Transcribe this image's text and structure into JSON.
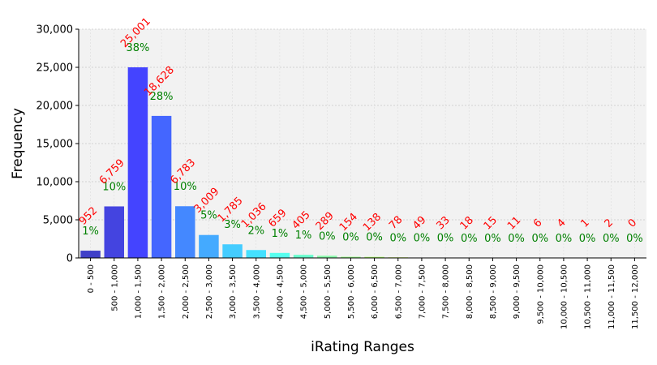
{
  "chart_data": {
    "type": "bar",
    "title": "",
    "xlabel": "iRating Ranges",
    "ylabel": "Frequency",
    "ylim": [
      0,
      30000
    ],
    "yticks": [
      "0",
      "5,000",
      "10,000",
      "15,000",
      "20,000",
      "25,000",
      "30,000"
    ],
    "ytick_values": [
      0,
      5000,
      10000,
      15000,
      20000,
      25000,
      30000
    ],
    "grid": true,
    "categories": [
      "0 - 500",
      "500 - 1,000",
      "1,000 - 1,500",
      "1,500 - 2,000",
      "2,000 - 2,500",
      "2,500 - 3,000",
      "3,000 - 3,500",
      "3,500 - 4,000",
      "4,000 - 4,500",
      "4,500 - 5,000",
      "5,000 - 5,500",
      "5,500 - 6,000",
      "6,000 - 6,500",
      "6,500 - 7,000",
      "7,000 - 7,500",
      "7,500 - 8,000",
      "8,000 - 8,500",
      "8,500 - 9,000",
      "9,000 - 9,500",
      "9,500 - 10,000",
      "10,000 - 10,500",
      "10,500 - 11,000",
      "11,000 - 11,500",
      "11,500 - 12,000"
    ],
    "values": [
      952,
      6759,
      25001,
      18628,
      6783,
      3009,
      1785,
      1036,
      659,
      405,
      289,
      154,
      138,
      78,
      49,
      33,
      18,
      15,
      11,
      6,
      4,
      1,
      2,
      0
    ],
    "value_labels": [
      "952",
      "6,759",
      "25,001",
      "18,628",
      "6,783",
      "3,009",
      "1,785",
      "1,036",
      "659",
      "405",
      "289",
      "154",
      "138",
      "78",
      "49",
      "33",
      "18",
      "15",
      "11",
      "6",
      "4",
      "1",
      "2",
      "0"
    ],
    "percent_labels": [
      "1%",
      "10%",
      "38%",
      "28%",
      "10%",
      "5%",
      "3%",
      "2%",
      "1%",
      "1%",
      "0%",
      "0%",
      "0%",
      "0%",
      "0%",
      "0%",
      "0%",
      "0%",
      "0%",
      "0%",
      "0%",
      "0%",
      "0%",
      "0%"
    ],
    "bar_colors": [
      "#4040c8",
      "#4444e0",
      "#4444ff",
      "#4466ff",
      "#4488ff",
      "#44aaff",
      "#44ccff",
      "#44e0ff",
      "#55ffee",
      "#66ffcc",
      "#88ffaa",
      "#99ff88",
      "#aaff66",
      "#ccff44",
      "#e6ff33",
      "#ffff22",
      "#ffdd22",
      "#ffbb22",
      "#ff9922",
      "#ff7722",
      "#ff5522",
      "#ff3322",
      "#ff2222",
      "#ee1111"
    ],
    "count_label_color": "#ff0000",
    "percent_label_color": "#008000",
    "plot_background": "#f2f2f2"
  }
}
